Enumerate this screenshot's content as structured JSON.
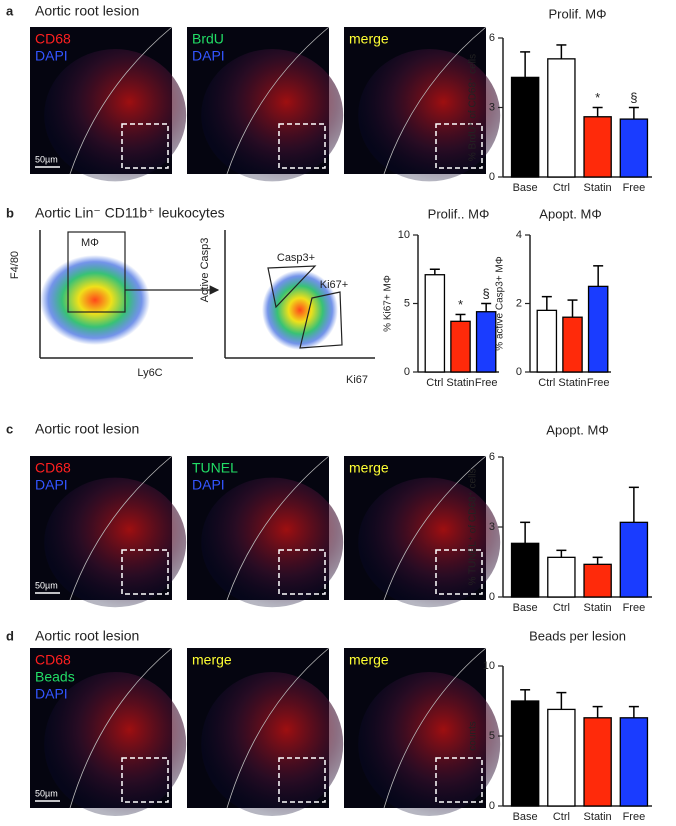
{
  "panels": [
    {
      "letter": "a",
      "header": "Aortic root lesion",
      "images": [
        {
          "labels": [
            {
              "text": "CD68",
              "color": "#ff2020"
            },
            {
              "text": "DAPI",
              "color": "#3355ff"
            }
          ]
        },
        {
          "labels": [
            {
              "text": "BrdU",
              "color": "#22dd66"
            },
            {
              "text": "DAPI",
              "color": "#3355ff"
            }
          ]
        },
        {
          "labels": [
            {
              "text": "merge",
              "color": "#ffff33"
            }
          ]
        }
      ],
      "scale_bar": "50µm"
    },
    {
      "letter": "b",
      "header": "Aortic Lin⁻ CD11b⁺ leukocytes",
      "flow": [
        {
          "ylabel": "F4/80",
          "xlabel": "Ly6C",
          "gates": [
            "MΦ"
          ]
        },
        {
          "ylabel": "Active Casp3",
          "xlabel": "Ki67",
          "gates": [
            "Casp3+",
            "Ki67+"
          ]
        }
      ]
    },
    {
      "letter": "c",
      "header": "Aortic root lesion",
      "images": [
        {
          "labels": [
            {
              "text": "CD68",
              "color": "#ff2020"
            },
            {
              "text": "DAPI",
              "color": "#3355ff"
            }
          ]
        },
        {
          "labels": [
            {
              "text": "TUNEL",
              "color": "#22dd66"
            },
            {
              "text": "DAPI",
              "color": "#3355ff"
            }
          ]
        },
        {
          "labels": [
            {
              "text": "merge",
              "color": "#ffff33"
            }
          ]
        }
      ],
      "scale_bar": "50µm"
    },
    {
      "letter": "d",
      "header": "Aortic root lesion",
      "images": [
        {
          "labels": [
            {
              "text": "CD68",
              "color": "#ff2020"
            },
            {
              "text": "Beads",
              "color": "#22dd66"
            },
            {
              "text": "DAPI",
              "color": "#3355ff"
            }
          ]
        },
        {
          "labels": [
            {
              "text": "merge",
              "color": "#ffff33"
            }
          ]
        },
        {
          "labels": [
            {
              "text": "merge",
              "color": "#ffff33"
            }
          ]
        }
      ],
      "scale_bar": "50µm"
    }
  ],
  "chart_data": [
    {
      "type": "bar",
      "title": "Prolif. MΦ",
      "ylabel": "% BrdU⁺ of CD68⁺ cells",
      "categories": [
        "Base",
        "Ctrl",
        "Statin",
        "Free"
      ],
      "values": [
        4.3,
        5.1,
        2.6,
        2.5
      ],
      "errors": [
        1.1,
        0.6,
        0.4,
        0.5
      ],
      "colors": [
        "#000000",
        "#ffffff",
        "#ff2a0a",
        "#1a3cff"
      ],
      "ylim": [
        0,
        6
      ],
      "yticks": [
        0,
        3,
        6
      ],
      "annotations": [
        {
          "text": "*",
          "category": "Statin"
        },
        {
          "text": "§",
          "category": "Free"
        }
      ]
    },
    {
      "type": "bar",
      "title": "Prolif.. MΦ",
      "ylabel": "% Ki67+ MΦ",
      "categories": [
        "Ctrl",
        "Statin",
        "Free"
      ],
      "values": [
        7.1,
        3.7,
        4.4
      ],
      "errors": [
        0.4,
        0.5,
        0.6
      ],
      "colors": [
        "#ffffff",
        "#ff2a0a",
        "#1a3cff"
      ],
      "ylim": [
        0,
        10
      ],
      "yticks": [
        0,
        5,
        10
      ],
      "annotations": [
        {
          "text": "*",
          "category": "Statin"
        },
        {
          "text": "§",
          "category": "Free"
        }
      ]
    },
    {
      "type": "bar",
      "title": "Apopt. MΦ",
      "ylabel": "% active Casp3+ MΦ",
      "categories": [
        "Ctrl",
        "Statin",
        "Free"
      ],
      "values": [
        1.8,
        1.6,
        2.5
      ],
      "errors": [
        0.4,
        0.5,
        0.6
      ],
      "colors": [
        "#ffffff",
        "#ff2a0a",
        "#1a3cff"
      ],
      "ylim": [
        0,
        4
      ],
      "yticks": [
        0,
        2,
        4
      ]
    },
    {
      "type": "bar",
      "title": "Apopt. MΦ",
      "ylabel": "% TUNEL⁺ of CD68⁺ cells",
      "categories": [
        "Base",
        "Ctrl",
        "Statin",
        "Free"
      ],
      "values": [
        2.3,
        1.7,
        1.4,
        3.2
      ],
      "errors": [
        0.9,
        0.3,
        0.3,
        1.5
      ],
      "colors": [
        "#000000",
        "#ffffff",
        "#ff2a0a",
        "#1a3cff"
      ],
      "ylim": [
        0,
        6
      ],
      "yticks": [
        0,
        3,
        6
      ]
    },
    {
      "type": "bar",
      "title": "Beads per lesion",
      "ylabel": "counts",
      "categories": [
        "Base",
        "Ctrl",
        "Statin",
        "Free"
      ],
      "values": [
        7.5,
        6.9,
        6.3,
        6.3
      ],
      "errors": [
        0.8,
        1.2,
        0.8,
        0.8
      ],
      "colors": [
        "#000000",
        "#ffffff",
        "#ff2a0a",
        "#1a3cff"
      ],
      "ylim": [
        0,
        10
      ],
      "yticks": [
        0,
        5,
        10
      ]
    }
  ]
}
